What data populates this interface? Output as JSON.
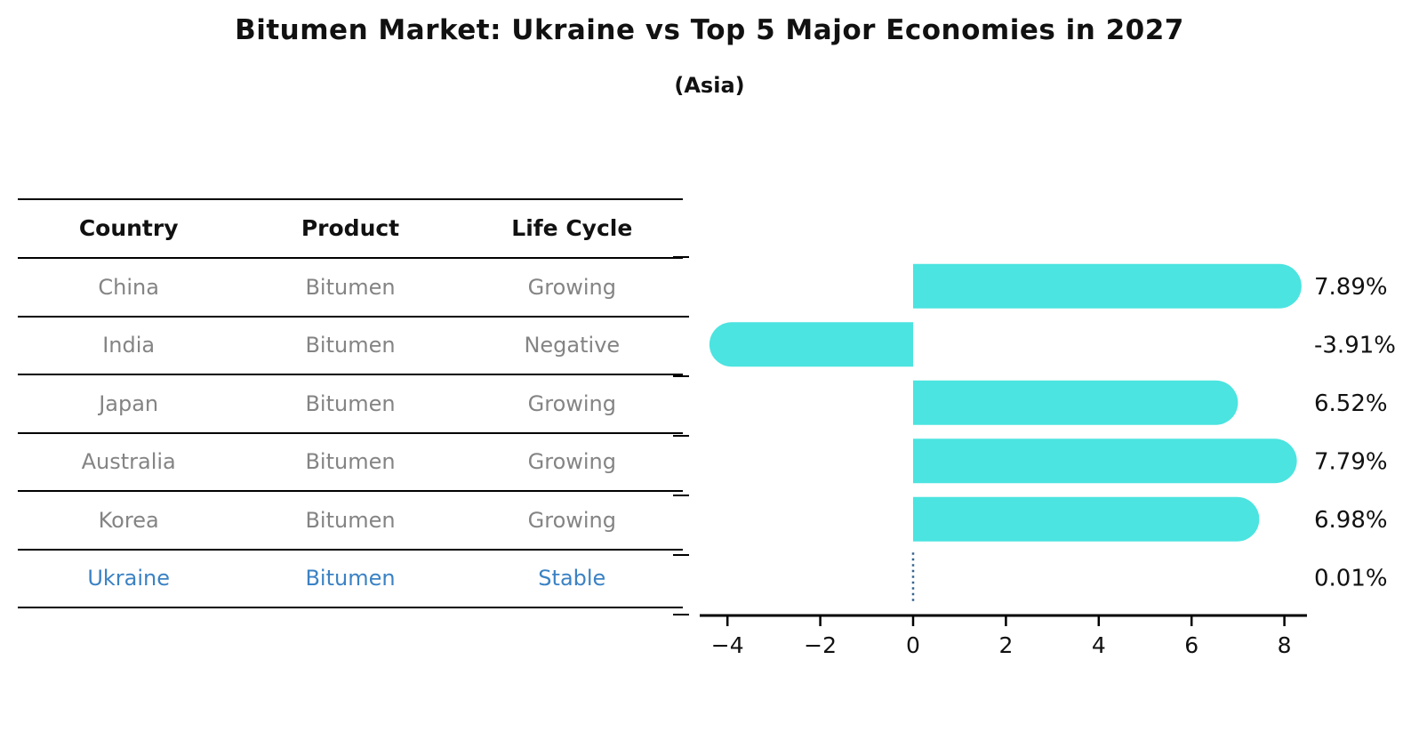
{
  "header": {
    "title": "Bitumen Market: Ukraine vs Top 5 Major Economies in 2027",
    "subtitle": "(Asia)"
  },
  "table": {
    "headers": [
      "Country",
      "Product",
      "Life Cycle"
    ],
    "rows": [
      {
        "country": "China",
        "product": "Bitumen",
        "life_cycle": "Growing",
        "highlight": false
      },
      {
        "country": "India",
        "product": "Bitumen",
        "life_cycle": "Negative",
        "highlight": false
      },
      {
        "country": "Japan",
        "product": "Bitumen",
        "life_cycle": "Growing",
        "highlight": false
      },
      {
        "country": "Australia",
        "product": "Bitumen",
        "life_cycle": "Growing",
        "highlight": false
      },
      {
        "country": "Korea",
        "product": "Bitumen",
        "life_cycle": "Growing",
        "highlight": false
      },
      {
        "country": "Ukraine",
        "product": "Bitumen",
        "life_cycle": "Stable",
        "highlight": true
      }
    ]
  },
  "chart_data": {
    "type": "bar",
    "orientation": "horizontal",
    "title": "Bitumen Market: Ukraine vs Top 5 Major Economies in 2027",
    "subtitle": "(Asia)",
    "categories": [
      "China",
      "India",
      "Japan",
      "Australia",
      "Korea",
      "Ukraine"
    ],
    "values": [
      7.89,
      -3.91,
      6.52,
      7.79,
      6.98,
      0.01
    ],
    "value_labels": [
      "7.89%",
      "-3.91%",
      "6.52%",
      "7.79%",
      "6.98%",
      "0.01%"
    ],
    "xticks": [
      -4,
      -2,
      0,
      2,
      4,
      6,
      8
    ],
    "xtick_labels": [
      "−4",
      "−2",
      "0",
      "2",
      "4",
      "6",
      "8"
    ],
    "xlim": [
      -4.6,
      8.5
    ],
    "grid": false,
    "legend": false,
    "bar_color": "#4be4e0",
    "near_zero_marker_color": "#35648f",
    "near_zero_marker_style": "dotted"
  },
  "colors": {
    "text": "#111111",
    "muted_text": "#848484",
    "highlight_text": "#3b82c4",
    "axis_line": "#000000",
    "background": "#ffffff"
  }
}
